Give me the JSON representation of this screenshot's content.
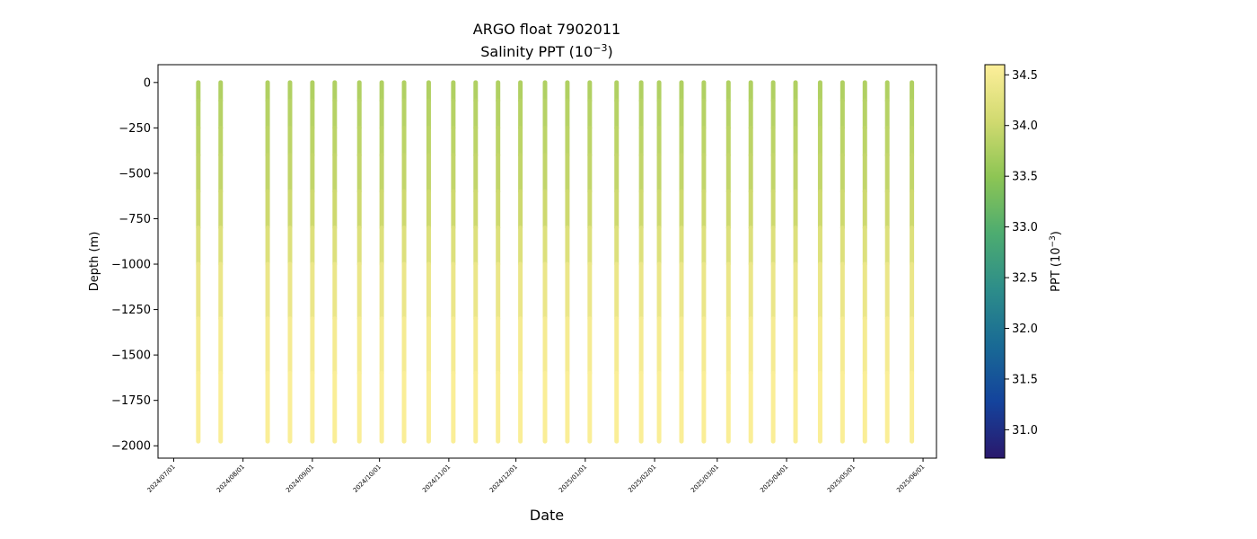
{
  "chart_data": {
    "type": "scatter",
    "title": "ARGO float 7902011",
    "subtitle_prefix": "Salinity PPT (10",
    "subtitle_exp": "−3",
    "subtitle_suffix": ")",
    "xlabel": "Date",
    "ylabel": "Depth (m)",
    "colorbar_label_prefix": "PPT (10",
    "colorbar_label_exp": "−3",
    "colorbar_label_suffix": ")",
    "colormap": "haline",
    "colorbar_colors": [
      "#2a186c",
      "#14439c",
      "#196a95",
      "#2d8d8a",
      "#4dac70",
      "#8dc554",
      "#d1da70",
      "#fdef9a"
    ],
    "xlim": [
      "2024-06-24",
      "2025-06-07"
    ],
    "ylim": [
      -2068,
      98
    ],
    "colorbar_range": [
      30.72,
      34.6
    ],
    "x_ticks": [
      "2024/07/01",
      "2024/08/01",
      "2024/09/01",
      "2024/10/01",
      "2024/11/01",
      "2024/12/01",
      "2025/01/01",
      "2025/02/01",
      "2025/03/01",
      "2025/04/01",
      "2025/05/01",
      "2025/06/01"
    ],
    "y_ticks": [
      0,
      -250,
      -500,
      -750,
      -1000,
      -1250,
      -1500,
      -1750,
      -2000
    ],
    "y_tick_labels": [
      "0",
      "−250",
      "−500",
      "−750",
      "−1000",
      "−1250",
      "−1500",
      "−1750",
      "−2000"
    ],
    "colorbar_ticks": [
      31.0,
      31.5,
      32.0,
      32.5,
      33.0,
      33.5,
      34.0,
      34.5
    ],
    "colorbar_tick_labels": [
      "31.0",
      "31.5",
      "32.0",
      "32.5",
      "33.0",
      "33.5",
      "34.0",
      "34.5"
    ],
    "profile_dates": [
      "2024-07-12",
      "2024-07-22",
      "2024-08-12",
      "2024-08-22",
      "2024-09-01",
      "2024-09-11",
      "2024-09-22",
      "2024-10-02",
      "2024-10-12",
      "2024-10-23",
      "2024-11-03",
      "2024-11-13",
      "2024-11-23",
      "2024-12-03",
      "2024-12-14",
      "2024-12-24",
      "2025-01-03",
      "2025-01-15",
      "2025-01-26",
      "2025-02-03",
      "2025-02-13",
      "2025-02-23",
      "2025-03-06",
      "2025-03-16",
      "2025-03-26",
      "2025-04-05",
      "2025-04-16",
      "2025-04-26",
      "2025-05-06",
      "2025-05-16",
      "2025-05-27"
    ],
    "profile_max_depth": -1975,
    "salinity_profile": {
      "depths": [
        0,
        -100,
        -250,
        -400,
        -600,
        -800,
        -1000,
        -1300,
        -1600,
        -1975
      ],
      "values": [
        33.75,
        33.8,
        33.85,
        33.9,
        33.95,
        34.1,
        34.3,
        34.45,
        34.55,
        34.58
      ]
    }
  }
}
